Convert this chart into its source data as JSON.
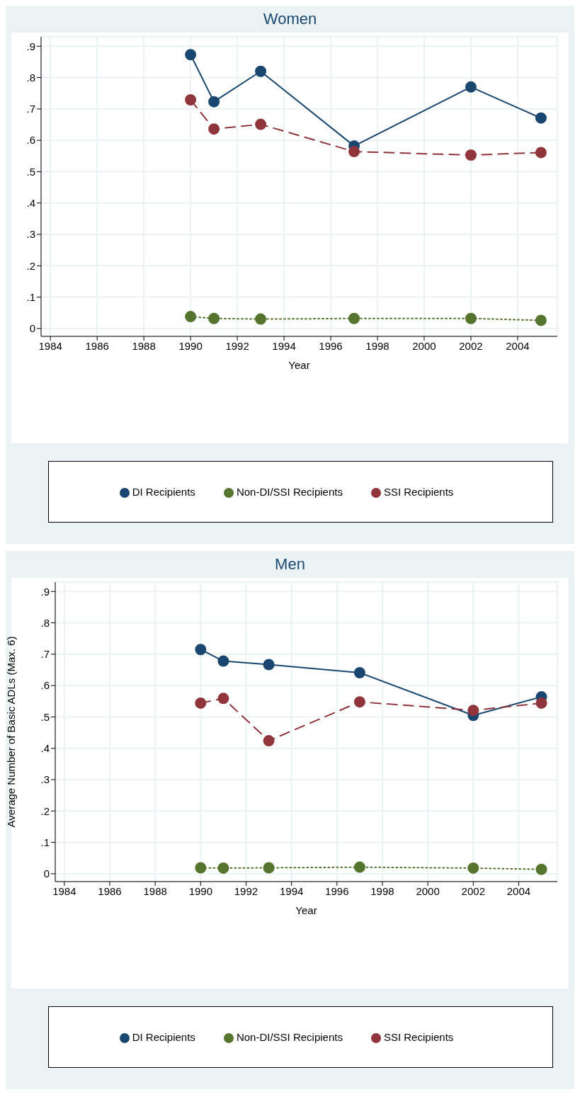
{
  "chart_data": [
    {
      "type": "line",
      "title": "Women",
      "xlabel": "Year",
      "x": [
        1990,
        1991,
        1993,
        1997,
        2002,
        2005
      ],
      "series": [
        {
          "name": "DI Recipients",
          "color": "#1a476f",
          "line_style": "solid",
          "values": [
            0.873,
            0.723,
            0.82,
            0.582,
            0.77,
            0.671
          ]
        },
        {
          "name": "SSI Recipients",
          "color": "#90353b",
          "line_style": "dashed",
          "values": [
            0.729,
            0.636,
            0.651,
            0.564,
            0.553,
            0.561
          ]
        },
        {
          "name": "Non-DI/SSI Recipients",
          "color": "#55752f",
          "line_style": "dotted",
          "values": [
            0.038,
            0.032,
            0.03,
            0.032,
            0.032,
            0.026
          ]
        }
      ],
      "xlim": [
        1983.6,
        2005.7
      ],
      "xticks": [
        1984,
        1986,
        1988,
        1990,
        1992,
        1994,
        1996,
        1998,
        2000,
        2002,
        2004
      ],
      "ylim": [
        -0.025,
        0.93
      ],
      "yticks": [
        {
          "value": 0,
          "label": "0"
        },
        {
          "value": 0.1,
          "label": ".1"
        },
        {
          "value": 0.2,
          "label": ".2"
        },
        {
          "value": 0.3,
          "label": ".3"
        },
        {
          "value": 0.4,
          "label": ".4"
        },
        {
          "value": 0.5,
          "label": ".5"
        },
        {
          "value": 0.6,
          "label": ".6"
        },
        {
          "value": 0.7,
          "label": ".7"
        },
        {
          "value": 0.8,
          "label": ".8"
        },
        {
          "value": 0.9,
          "label": ".9"
        }
      ],
      "grid": true,
      "legend": "bottom",
      "marker": "circle"
    },
    {
      "type": "line",
      "title": "Men",
      "xlabel": "Year",
      "ylabel": "Average Number of Basic ADLs (Max. 6)",
      "x": [
        1990,
        1991,
        1993,
        1997,
        2002,
        2005
      ],
      "series": [
        {
          "name": "DI Recipients",
          "color": "#1a476f",
          "line_style": "solid",
          "values": [
            0.715,
            0.678,
            0.667,
            0.641,
            0.505,
            0.564
          ]
        },
        {
          "name": "SSI Recipients",
          "color": "#90353b",
          "line_style": "dashed",
          "values": [
            0.544,
            0.559,
            0.424,
            0.548,
            0.521,
            0.544
          ]
        },
        {
          "name": "Non-DI/SSI Recipients",
          "color": "#55752f",
          "line_style": "dotted",
          "values": [
            0.019,
            0.018,
            0.019,
            0.021,
            0.018,
            0.014
          ]
        }
      ],
      "xlim": [
        1983.6,
        2005.7
      ],
      "xticks": [
        1984,
        1986,
        1988,
        1990,
        1992,
        1994,
        1996,
        1998,
        2000,
        2002,
        2004
      ],
      "ylim": [
        -0.025,
        0.93
      ],
      "yticks": [
        {
          "value": 0,
          "label": "0"
        },
        {
          "value": 0.1,
          "label": ".1"
        },
        {
          "value": 0.2,
          "label": ".2"
        },
        {
          "value": 0.3,
          "label": ".3"
        },
        {
          "value": 0.4,
          "label": ".4"
        },
        {
          "value": 0.5,
          "label": ".5"
        },
        {
          "value": 0.6,
          "label": ".6"
        },
        {
          "value": 0.7,
          "label": ".7"
        },
        {
          "value": 0.8,
          "label": ".8"
        },
        {
          "value": 0.9,
          "label": ".9"
        }
      ],
      "grid": true,
      "legend": "bottom",
      "marker": "circle"
    }
  ]
}
